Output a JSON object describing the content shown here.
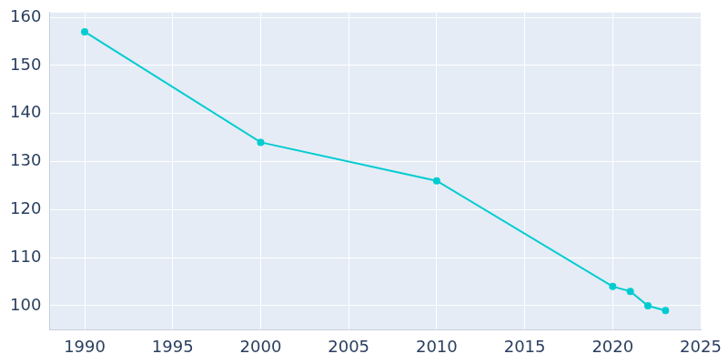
{
  "chart_data": {
    "type": "line",
    "x": [
      1990,
      2000,
      2010,
      2020,
      2021,
      2022,
      2023
    ],
    "values": [
      157,
      134,
      126,
      104,
      103,
      100,
      99
    ],
    "color": "#00ccd0",
    "marker": "circle",
    "xlim": [
      1988,
      2025
    ],
    "xticks": [
      1990,
      1995,
      2000,
      2005,
      2010,
      2015,
      2020,
      2025
    ],
    "ylim": [
      95,
      161
    ],
    "yticks": [
      100,
      110,
      120,
      130,
      140,
      150,
      160
    ],
    "grid": true
  }
}
